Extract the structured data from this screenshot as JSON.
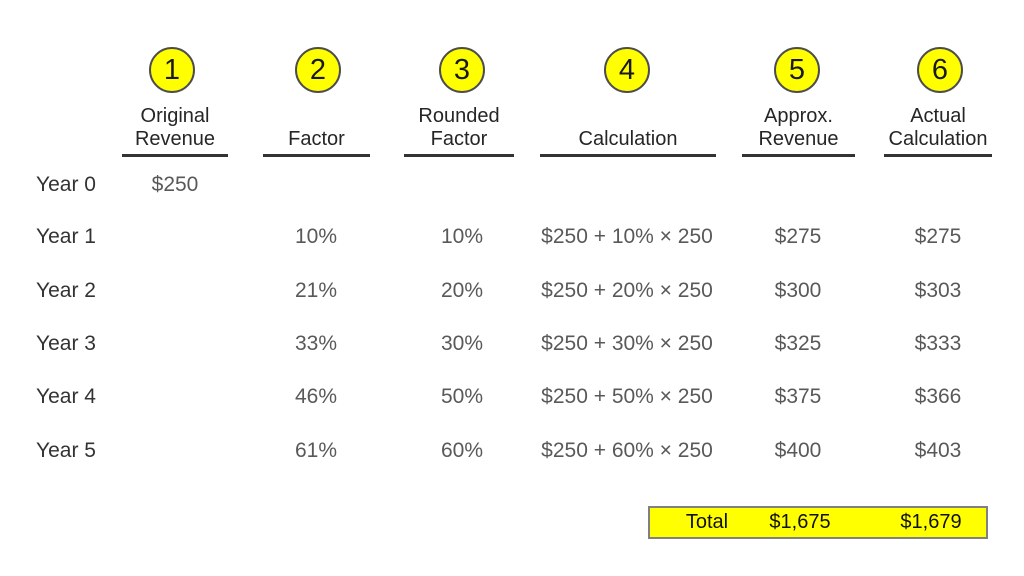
{
  "columns": [
    {
      "number": "1",
      "header_line1": "Original",
      "header_line2": "Revenue"
    },
    {
      "number": "2",
      "header_line1": "",
      "header_line2": "Factor"
    },
    {
      "number": "3",
      "header_line1": "Rounded",
      "header_line2": "Factor"
    },
    {
      "number": "4",
      "header_line1": "",
      "header_line2": "Calculation"
    },
    {
      "number": "5",
      "header_line1": "Approx.",
      "header_line2": "Revenue"
    },
    {
      "number": "6",
      "header_line1": "Actual",
      "header_line2": "Calculation"
    }
  ],
  "rows": [
    {
      "label": "Year 0",
      "original_revenue": "$250",
      "factor": "",
      "rounded_factor": "",
      "calculation": "",
      "approx_revenue": "",
      "actual_calculation": ""
    },
    {
      "label": "Year 1",
      "original_revenue": "",
      "factor": "10%",
      "rounded_factor": "10%",
      "calculation": "$250 + 10% × 250",
      "approx_revenue": "$275",
      "actual_calculation": "$275"
    },
    {
      "label": "Year 2",
      "original_revenue": "",
      "factor": "21%",
      "rounded_factor": "20%",
      "calculation": "$250 + 20% × 250",
      "approx_revenue": "$300",
      "actual_calculation": "$303"
    },
    {
      "label": "Year 3",
      "original_revenue": "",
      "factor": "33%",
      "rounded_factor": "30%",
      "calculation": "$250 + 30% × 250",
      "approx_revenue": "$325",
      "actual_calculation": "$333"
    },
    {
      "label": "Year 4",
      "original_revenue": "",
      "factor": "46%",
      "rounded_factor": "50%",
      "calculation": "$250 + 50% × 250",
      "approx_revenue": "$375",
      "actual_calculation": "$366"
    },
    {
      "label": "Year 5",
      "original_revenue": "",
      "factor": "61%",
      "rounded_factor": "60%",
      "calculation": "$250 + 60% × 250",
      "approx_revenue": "$400",
      "actual_calculation": "$403"
    }
  ],
  "total": {
    "label": "Total",
    "approx_revenue": "$1,675",
    "actual_calculation": "$1,679"
  },
  "colors": {
    "accent_yellow": "#ffff00",
    "circle_border": "#4d4d4d",
    "underline": "#333333",
    "total_border": "#808080"
  }
}
